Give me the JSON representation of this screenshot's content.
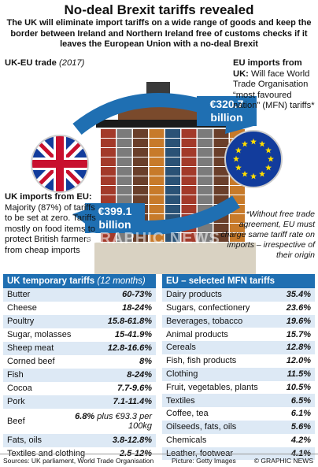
{
  "title": "No-deal Brexit tariffs revealed",
  "subtitle": "The UK will eliminate import tariffs on a wide range of goods and keep the border between Ireland and Northern Ireland free of customs checks if it leaves the European Union with a no-deal Brexit",
  "trade": {
    "label": "UK-EU trade",
    "year": "(2017)",
    "eu_imports_from_uk_amount": "€320.7 billion",
    "uk_imports_from_eu_amount": "€399.1 billion",
    "eu_imports_heading": "EU imports from UK:",
    "eu_imports_text": "Will face World Trade Organisation “most favoured nation” (MFN) tariffs*",
    "uk_imports_heading": "UK imports from EU:",
    "uk_imports_text": "Majority (87%) of tariffs to be set at zero. Tariffs mostly on food items to protect British farmers from cheap imports",
    "footnote": "*Without free trade agreement, EU must charge same tariff rate on imports – irrespective of their origin",
    "watermark": "GRAPHIC NEWS",
    "colors": {
      "accent": "#1f6fb2",
      "row_tint": "#dde9f5",
      "uk_red": "#c8102e",
      "eu_blue": "#123c9c",
      "eu_star": "#ffdd00"
    },
    "icons": [
      "uk-flag-icon",
      "eu-flag-icon",
      "curved-arrow-icon",
      "cargo-ship-photo"
    ]
  },
  "chart_data": [
    {
      "type": "table",
      "title": "UK temporary tariffs",
      "title_note": "(12 months)",
      "rows": [
        {
          "label": "Butter",
          "value": "60-73%"
        },
        {
          "label": "Cheese",
          "value": "18-24%"
        },
        {
          "label": "Poultry",
          "value": "15.8-61.8%"
        },
        {
          "label": "Sugar, molasses",
          "value": "15-41.9%"
        },
        {
          "label": "Sheep meat",
          "value": "12.8-16.6%"
        },
        {
          "label": "Corned beef",
          "value": "8%"
        },
        {
          "label": "Fish",
          "value": "8-24%"
        },
        {
          "label": "Cocoa",
          "value": "7.7-9.6%"
        },
        {
          "label": "Pork",
          "value": "7.1-11.4%"
        },
        {
          "label": "Beef",
          "value": "6.8%",
          "value_suffix": "plus €93.3 per 100kg"
        },
        {
          "label": "Fats, oils",
          "value": "3.8-12.8%"
        },
        {
          "label": "Textiles and clothing",
          "value": "2.5-12%"
        }
      ]
    },
    {
      "type": "table",
      "title": "EU – selected MFN tariffs",
      "rows": [
        {
          "label": "Dairy products",
          "value": "35.4%"
        },
        {
          "label": "Sugars, confectionery",
          "value": "23.6%"
        },
        {
          "label": "Beverages, tobacco",
          "value": "19.6%"
        },
        {
          "label": "Animal products",
          "value": "15.7%"
        },
        {
          "label": "Cereals",
          "value": "12.8%"
        },
        {
          "label": "Fish, fish products",
          "value": "12.0%"
        },
        {
          "label": "Clothing",
          "value": "11.5%"
        },
        {
          "label": "Fruit, vegetables, plants",
          "value": "10.5%"
        },
        {
          "label": "Textiles",
          "value": "6.5%"
        },
        {
          "label": "Coffee, tea",
          "value": "6.1%"
        },
        {
          "label": "Oilseeds, fats, oils",
          "value": "5.6%"
        },
        {
          "label": "Chemicals",
          "value": "4.2%"
        },
        {
          "label": "Leather, footwear",
          "value": "4.1%"
        }
      ]
    }
  ],
  "footer": {
    "sources": "Sources: UK parliament, World Trade Organisation",
    "picture": "Picture: Getty Images",
    "credit": "© GRAPHIC NEWS"
  }
}
